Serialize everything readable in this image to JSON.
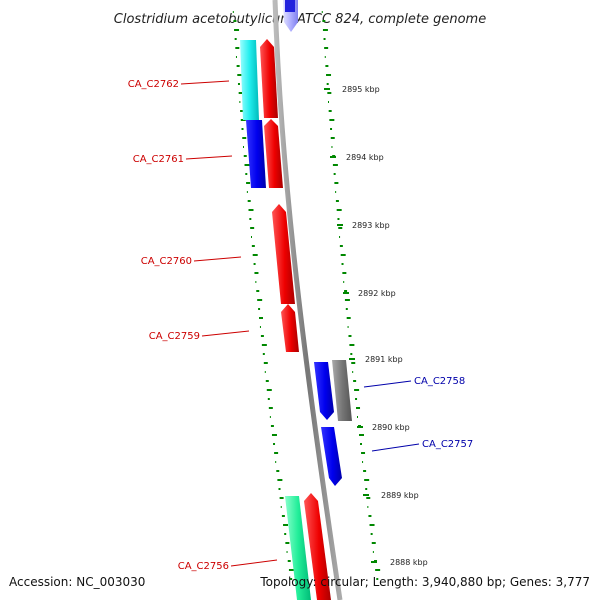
{
  "title": "Clostridium acetobutylicum ATCC 824, complete genome",
  "footer": {
    "accession": "Accession: NC_003030",
    "summary": "Topology: circular; Length: 3,940,880 bp; Genes: 3,777"
  },
  "colors": {
    "left_label": "#cc0000",
    "right_label": "#0000aa",
    "gc_ticks": "#008800",
    "backbone": "#888888"
  },
  "scale_labels": [
    "2895 kbp",
    "2894 kbp",
    "2893 kbp",
    "2892 kbp",
    "2891 kbp",
    "2890 kbp",
    "2889 kbp",
    "2888 kbp"
  ],
  "genes_left": [
    {
      "id": "ca-c2762",
      "label": "CA_C2762"
    },
    {
      "id": "ca-c2761",
      "label": "CA_C2761"
    },
    {
      "id": "ca-c2760",
      "label": "CA_C2760"
    },
    {
      "id": "ca-c2759",
      "label": "CA_C2759"
    },
    {
      "id": "ca-c2756",
      "label": "CA_C2756"
    }
  ],
  "genes_right": [
    {
      "id": "ca-c2758",
      "label": "CA_C2758"
    },
    {
      "id": "ca-c2757",
      "label": "CA_C2757"
    }
  ]
}
